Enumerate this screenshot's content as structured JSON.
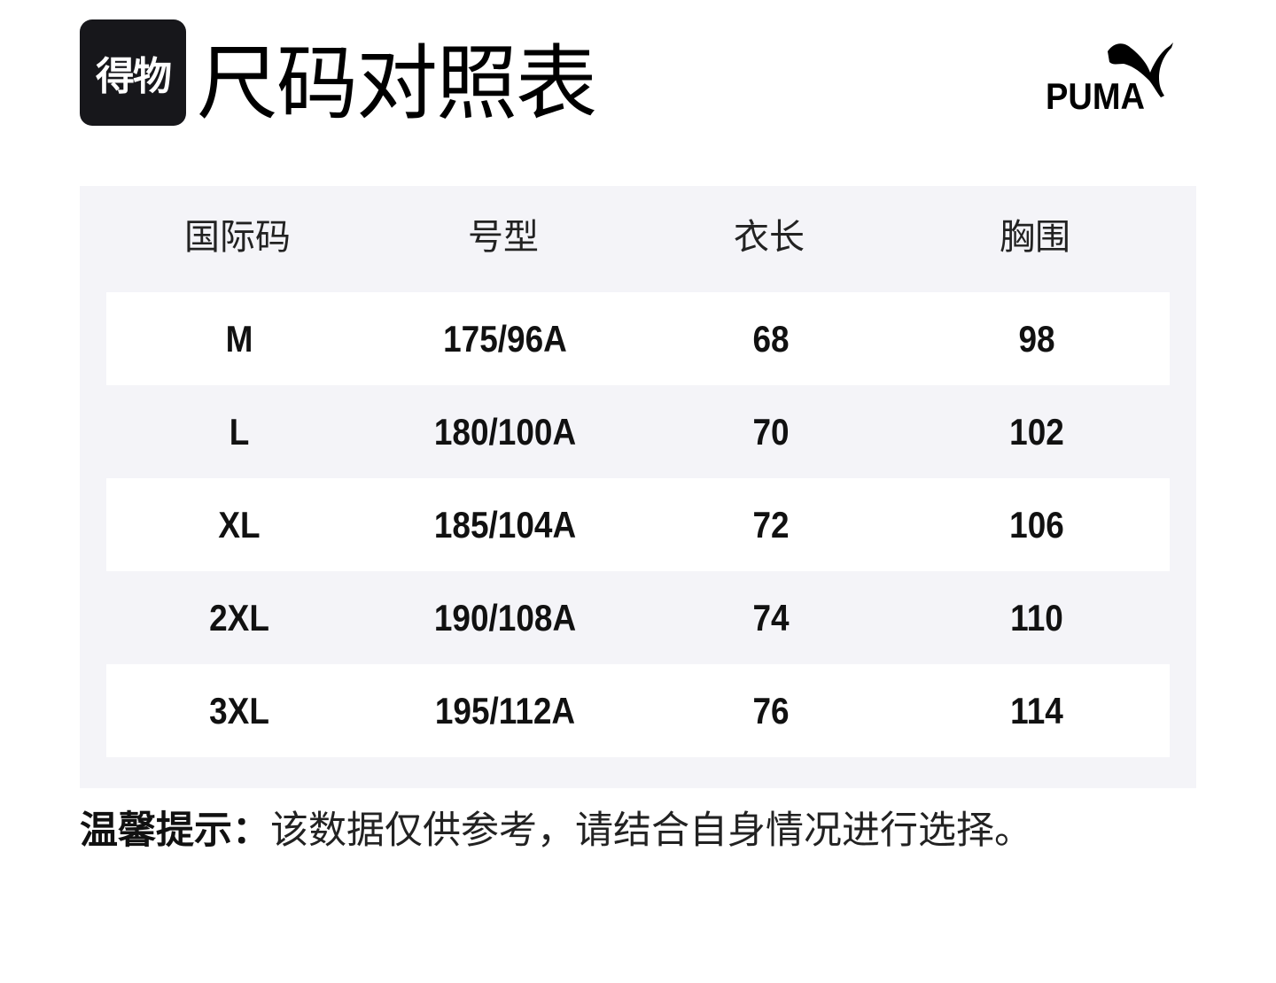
{
  "header": {
    "app_logo_text": "得物",
    "title": "尺码对照表",
    "brand_logo_text": "PUMA"
  },
  "table": {
    "columns": [
      "国际码",
      "号型",
      "衣长",
      "胸围"
    ],
    "rows": [
      [
        "M",
        "175/96A",
        "68",
        "98"
      ],
      [
        "L",
        "180/100A",
        "70",
        "102"
      ],
      [
        "XL",
        "185/104A",
        "72",
        "106"
      ],
      [
        "2XL",
        "190/108A",
        "74",
        "110"
      ],
      [
        "3XL",
        "195/112A",
        "76",
        "114"
      ]
    ]
  },
  "footer": {
    "tip_label": "温馨提示：",
    "tip_text": "该数据仅供参考，请结合自身情况进行选择。"
  },
  "colors": {
    "panel": "#f4f4f8",
    "logo_bg": "#17171b"
  }
}
